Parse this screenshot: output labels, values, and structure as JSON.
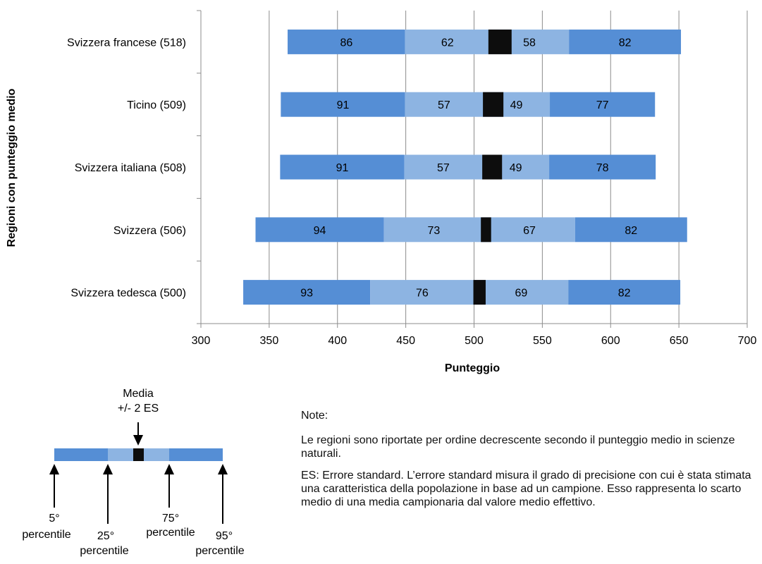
{
  "chart_data": {
    "type": "bar",
    "subtype": "stacked-horizontal-percentile",
    "xlabel": "Punteggio",
    "ylabel": "Regioni con punteggio medio",
    "xlim": [
      300,
      700
    ],
    "xticks": [
      300,
      350,
      400,
      450,
      500,
      550,
      600,
      650,
      700
    ],
    "grid": "vertical",
    "colors": {
      "outer": "#558ed5",
      "inner": "#8db4e2",
      "mean_band": "#0d0d0d"
    },
    "categories": [
      "Svizzera francese (518)",
      "Ticino (509)",
      "Svizzera italiana (508)",
      "Svizzera (506)",
      "Svizzera tedesca (500)"
    ],
    "rows": [
      {
        "label": "Svizzera francese (518)",
        "mean": 518,
        "start": 363.5,
        "segments": [
          86,
          62,
          58,
          82
        ],
        "band": [
          510.5,
          527.5
        ]
      },
      {
        "label": "Ticino (509)",
        "mean": 509,
        "start": 358.5,
        "segments": [
          91,
          57,
          49,
          77
        ],
        "band": [
          506.5,
          521.5
        ]
      },
      {
        "label": "Svizzera italiana (508)",
        "mean": 508,
        "start": 358,
        "segments": [
          91,
          57,
          49,
          78
        ],
        "band": [
          506,
          520.5
        ]
      },
      {
        "label": "Svizzera (506)",
        "mean": 506,
        "start": 340,
        "segments": [
          94,
          73,
          67,
          82
        ],
        "band": [
          505,
          512.5
        ]
      },
      {
        "label": "Svizzera tedesca (500)",
        "mean": 500,
        "start": 331,
        "segments": [
          93,
          76,
          69,
          82
        ],
        "band": [
          499.5,
          508.5
        ]
      }
    ]
  },
  "legend": {
    "mean_label_line1": "Media",
    "mean_label_line2": "+/- 2 ES",
    "p5_line1": "5°",
    "p5_line2": "percentile",
    "p25_line1": "25°",
    "p25_line2": "percentile",
    "p75_line1": "75°",
    "p75_line2": "percentile",
    "p95_line1": "95°",
    "p95_line2": "percentile"
  },
  "notes": {
    "heading": "Note:",
    "paragraph1": "Le regioni sono riportate per ordine decrescente secondo il punteggio medio in scienze naturali.",
    "paragraph2": "ES: Errore standard. L’errore standard misura il grado di precisione con cui è stata stimata una caratteristica della popolazione in base ad un campione. Esso rappresenta lo scarto medio di una media campionaria dal valore medio effettivo."
  }
}
